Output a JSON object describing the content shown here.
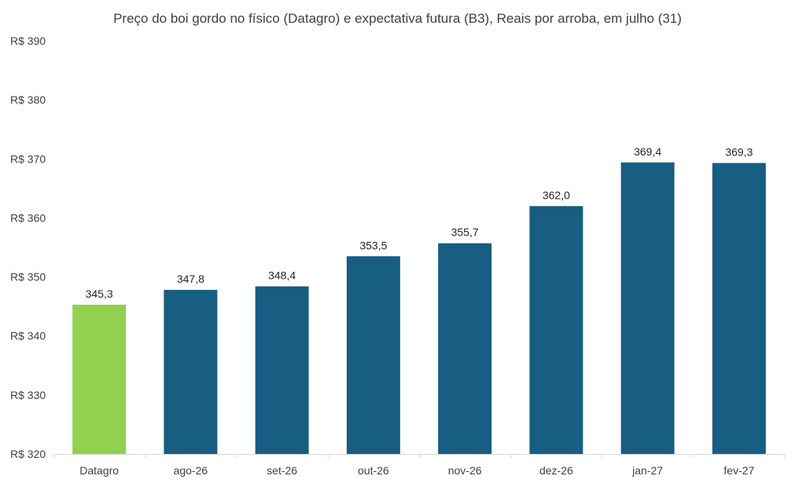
{
  "chart_data": {
    "type": "bar",
    "title": "Preço do boi gordo no físico (Datagro)  e expectativa futura (B3), Reais por arroba, em julho (31)",
    "categories": [
      "Datagro",
      "ago-26",
      "set-26",
      "out-26",
      "nov-26",
      "dez-26",
      "jan-27",
      "fev-27"
    ],
    "values": [
      345.3,
      347.8,
      348.4,
      353.5,
      355.7,
      362.0,
      369.4,
      369.3
    ],
    "value_labels": [
      "345,3",
      "347,8",
      "348,4",
      "353,5",
      "355,7",
      "362,0",
      "369,4",
      "369,3"
    ],
    "y_ticks": [
      320,
      330,
      340,
      350,
      360,
      370,
      380,
      390
    ],
    "y_tick_labels": [
      "R$ 320",
      "R$ 330",
      "R$ 340",
      "R$ 350",
      "R$ 360",
      "R$ 370",
      "R$ 380",
      "R$ 390"
    ],
    "ylim": [
      320,
      390
    ],
    "xlabel": "",
    "ylabel": "",
    "grid": false,
    "legend": "none",
    "colors": {
      "highlight": "#92d050",
      "bar": "#175e82",
      "axis": "#d9d9d9",
      "text": "#404040"
    },
    "highlight_index": 0
  }
}
